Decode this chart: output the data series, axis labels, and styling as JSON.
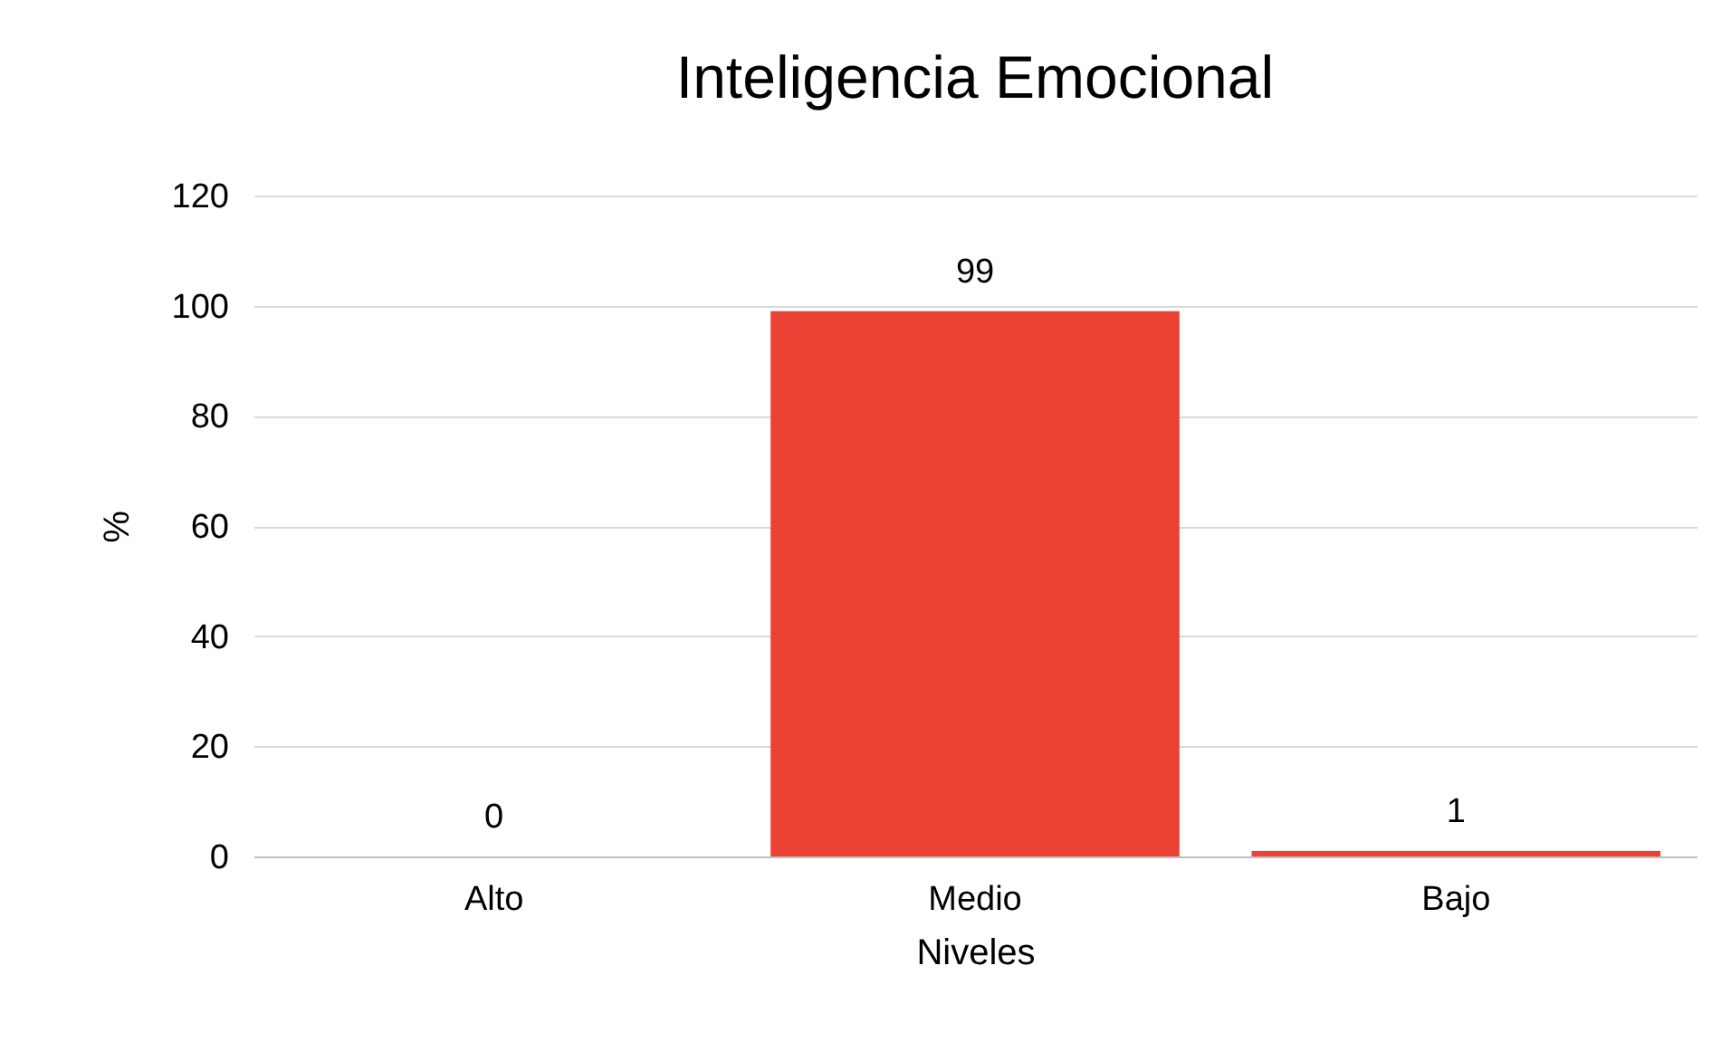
{
  "chart_data": {
    "type": "bar",
    "title": "Inteligencia Emocional",
    "xlabel": "Niveles",
    "ylabel": "%",
    "categories": [
      "Alto",
      "Medio",
      "Bajo"
    ],
    "values": [
      0,
      99,
      1
    ],
    "color": "#ea4335",
    "ylim": [
      0,
      120
    ],
    "yticks": [
      0,
      20,
      40,
      60,
      80,
      100,
      120
    ],
    "grid": "y",
    "data_labels": true
  }
}
